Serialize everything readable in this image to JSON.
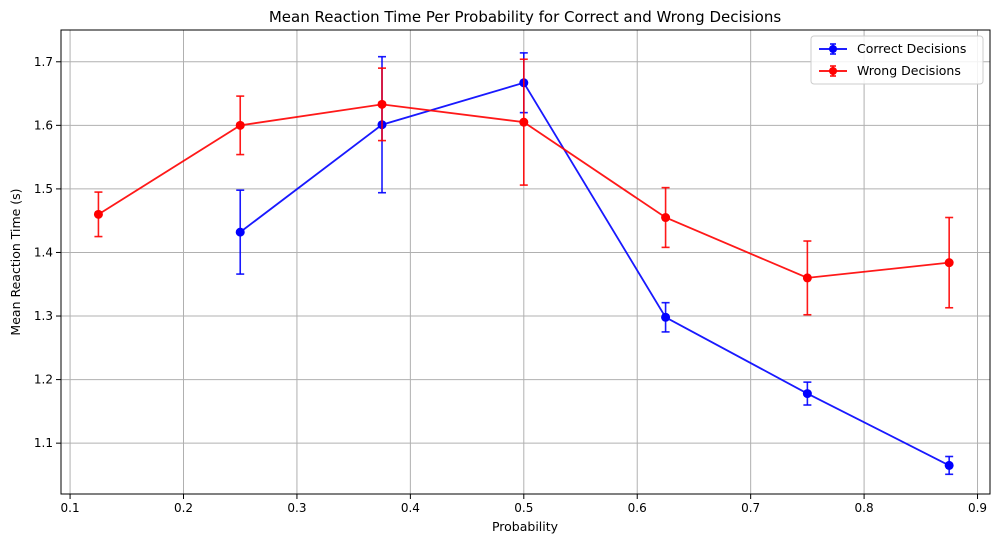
{
  "chart_data": {
    "type": "line",
    "title": "Mean Reaction Time Per Probability for Correct and Wrong Decisions",
    "xlabel": "Probability",
    "ylabel": "Mean Reaction Time (s)",
    "xlim": [
      0.092,
      0.911
    ],
    "ylim": [
      1.02,
      1.75
    ],
    "xticks": [
      0.1,
      0.2,
      0.3,
      0.4,
      0.5,
      0.6,
      0.7,
      0.8,
      0.9
    ],
    "xtick_labels": [
      "0.1",
      "0.2",
      "0.3",
      "0.4",
      "0.5",
      "0.6",
      "0.7",
      "0.8",
      "0.9"
    ],
    "yticks": [
      1.1,
      1.2,
      1.3,
      1.4,
      1.5,
      1.6,
      1.7
    ],
    "ytick_labels": [
      "1.1",
      "1.2",
      "1.3",
      "1.4",
      "1.5",
      "1.6",
      "1.7"
    ],
    "grid": true,
    "legend_position": "top-right",
    "series": [
      {
        "name": "Correct Decisions",
        "color": "#0000ff",
        "x": [
          0.25,
          0.375,
          0.5,
          0.625,
          0.75,
          0.875
        ],
        "y": [
          1.432,
          1.601,
          1.667,
          1.298,
          1.178,
          1.065
        ],
        "yerr": [
          0.066,
          0.107,
          0.047,
          0.023,
          0.018,
          0.014
        ]
      },
      {
        "name": "Wrong Decisions",
        "color": "#ff0000",
        "x": [
          0.125,
          0.25,
          0.375,
          0.5,
          0.625,
          0.75,
          0.875
        ],
        "y": [
          1.46,
          1.6,
          1.633,
          1.605,
          1.455,
          1.36,
          1.384
        ],
        "yerr": [
          0.035,
          0.046,
          0.057,
          0.099,
          0.047,
          0.058,
          0.071
        ]
      }
    ]
  }
}
